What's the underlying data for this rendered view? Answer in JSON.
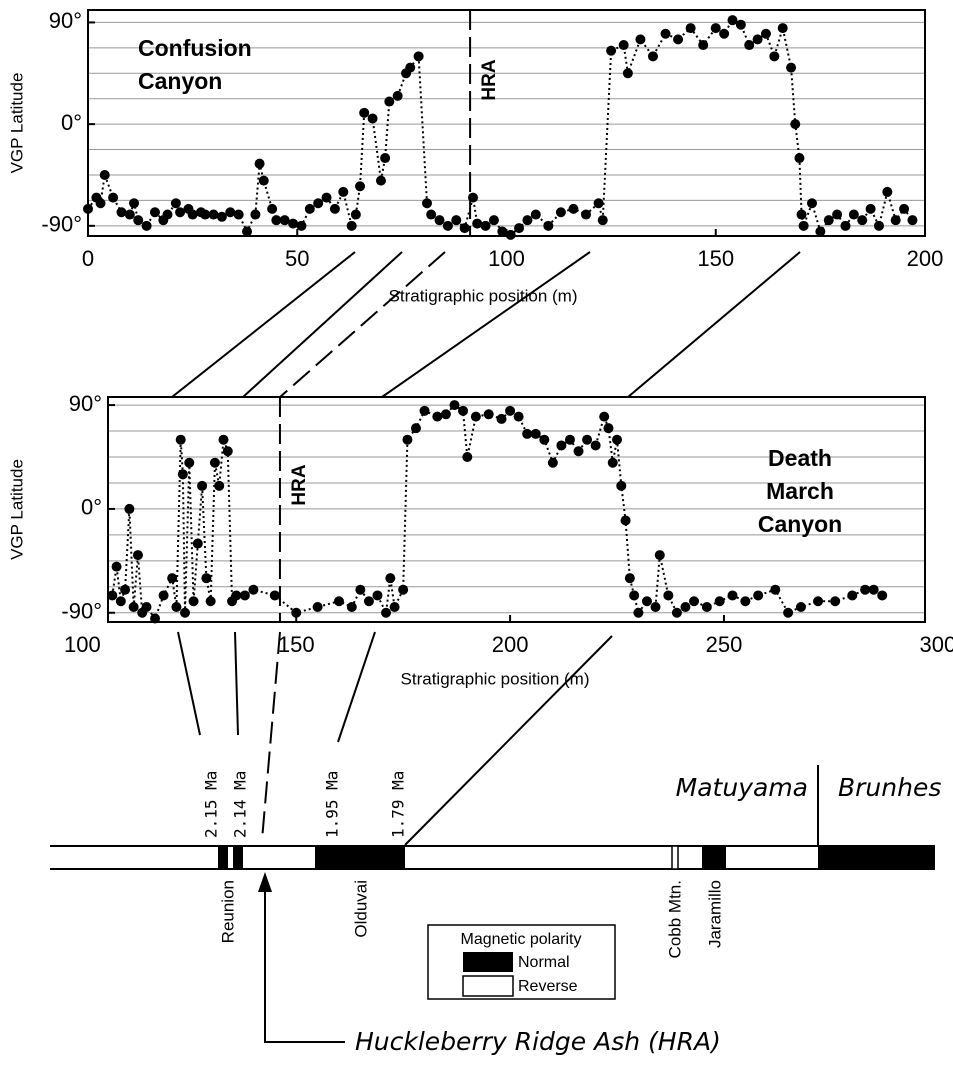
{
  "chart_data": [
    {
      "type": "scatter-line",
      "title_lines": [
        "Confusion",
        "Canyon"
      ],
      "y_label": "VGP Latitude",
      "x_label": "Stratigraphic position (m)",
      "xlim": [
        0,
        200
      ],
      "xticks": [
        0,
        50,
        100,
        150,
        200
      ],
      "ylim": [
        -99,
        101
      ],
      "yticks": [
        {
          "value": -90,
          "label": "-90°"
        },
        {
          "value": 0,
          "label": "0°"
        },
        {
          "value": 90,
          "label": "90°"
        }
      ],
      "ygrid": [
        -90,
        -67.5,
        -45,
        -22.5,
        0,
        22.5,
        45,
        67.5,
        90
      ],
      "marker": {
        "label": "HRA",
        "x": 91.3
      },
      "color": "#000000",
      "x": [
        0,
        2,
        3,
        4,
        6,
        8,
        10,
        11,
        12,
        14,
        16,
        18,
        19,
        21,
        22,
        24,
        25,
        27,
        28,
        30,
        32,
        34,
        36,
        38,
        40,
        41,
        42,
        44,
        45,
        47,
        49,
        51,
        53,
        55,
        57,
        59,
        61,
        63,
        64,
        65,
        66,
        68,
        70,
        71,
        72,
        74,
        76,
        77,
        79,
        81,
        82,
        84,
        86,
        88,
        90,
        92,
        93,
        95,
        97,
        99,
        101,
        103,
        105,
        107,
        110,
        113,
        116,
        119,
        122,
        123,
        125,
        128,
        129,
        132,
        135,
        138,
        141,
        144,
        147,
        150,
        152,
        154,
        156,
        158,
        160,
        162,
        164,
        166,
        168,
        169,
        170,
        170.5,
        171,
        173,
        175,
        177,
        179,
        181,
        183,
        185,
        187,
        189,
        191,
        193,
        195,
        197
      ],
      "values": [
        -75,
        -65,
        -70,
        -45,
        -65,
        -78,
        -80,
        -70,
        -85,
        -90,
        -78,
        -85,
        -80,
        -70,
        -78,
        -75,
        -80,
        -78,
        -80,
        -80,
        -82,
        -78,
        -80,
        -95,
        -80,
        -35,
        -50,
        -75,
        -85,
        -85,
        -88,
        -90,
        -75,
        -70,
        -65,
        -75,
        -60,
        -90,
        -80,
        -55,
        10,
        5,
        -50,
        -30,
        20,
        25,
        45,
        50,
        60,
        -70,
        -80,
        -85,
        -90,
        -85,
        -92,
        -65,
        -88,
        -90,
        -85,
        -95,
        -98,
        -92,
        -85,
        -80,
        -90,
        -78,
        -75,
        -80,
        -70,
        -85,
        65,
        70,
        45,
        75,
        60,
        80,
        75,
        85,
        70,
        85,
        80,
        92,
        88,
        70,
        75,
        80,
        60,
        85,
        50,
        0,
        -30,
        -80,
        -90,
        -70,
        -95,
        -85,
        -80,
        -90,
        -80,
        -85,
        -75,
        -90,
        -60,
        -85,
        -75,
        -85
      ]
    },
    {
      "type": "scatter-line",
      "title_lines": [
        "Death",
        "March",
        "Canyon"
      ],
      "y_label": "VGP Latitude",
      "x_label": "Stratigraphic position (m)",
      "xlim": [
        106,
        297
      ],
      "xticks": [
        100,
        150,
        200,
        250,
        300
      ],
      "ylim": [
        -98,
        97
      ],
      "yticks": [
        {
          "value": -90,
          "label": "-90°"
        },
        {
          "value": 0,
          "label": "0°"
        },
        {
          "value": 90,
          "label": "90°"
        }
      ],
      "ygrid": [
        -90,
        -67.5,
        -45,
        -22.5,
        0,
        22.5,
        45,
        67.5,
        90
      ],
      "marker": {
        "label": "HRA",
        "x": 146.2
      },
      "color": "#000000",
      "x": [
        107,
        108,
        109,
        110,
        111,
        112,
        113,
        114,
        115,
        117,
        119,
        121,
        122,
        123,
        123.5,
        124,
        125,
        126,
        127,
        128,
        129,
        130,
        131,
        132,
        133,
        134,
        135,
        136,
        138,
        140,
        145,
        150,
        155,
        160,
        163,
        165,
        167,
        169,
        171,
        172,
        173,
        175,
        176,
        178,
        180,
        183,
        185,
        187,
        189,
        190,
        192,
        195,
        198,
        200,
        202,
        204,
        206,
        208,
        210,
        212,
        214,
        216,
        218,
        220,
        222,
        223,
        224,
        225,
        226,
        227,
        228,
        229,
        230,
        232,
        234,
        235,
        237,
        239,
        241,
        243,
        246,
        249,
        252,
        255,
        258,
        262,
        265,
        268,
        272,
        276,
        280,
        283,
        285,
        287
      ],
      "values": [
        -75,
        -50,
        -80,
        -70,
        0,
        -85,
        -40,
        -90,
        -85,
        -95,
        -75,
        -60,
        -85,
        60,
        30,
        -90,
        40,
        -80,
        -30,
        20,
        -60,
        -80,
        40,
        20,
        60,
        50,
        -80,
        -75,
        -75,
        -70,
        -75,
        -90,
        -85,
        -80,
        -85,
        -70,
        -80,
        -75,
        -90,
        -60,
        -85,
        -70,
        60,
        70,
        85,
        80,
        82,
        90,
        85,
        45,
        80,
        82,
        78,
        85,
        80,
        65,
        65,
        60,
        40,
        55,
        60,
        50,
        60,
        55,
        80,
        70,
        40,
        60,
        20,
        -10,
        -60,
        -75,
        -90,
        -80,
        -85,
        -40,
        -75,
        -90,
        -85,
        -80,
        -85,
        -80,
        -75,
        -80,
        -75,
        -70,
        -90,
        -85,
        -80,
        -80,
        -75,
        -70,
        -70,
        -75
      ]
    }
  ],
  "timescale": {
    "ages": [
      "2.15 Ma",
      "2.14 Ma",
      "1.95 Ma",
      "1.79 Ma"
    ],
    "epochs": [
      "Matuyama",
      "Brunhes"
    ],
    "chrons": [
      "Reunion",
      "Olduvai",
      "Cobb Mtn.",
      "Jaramillo"
    ],
    "legend": {
      "title": "Magnetic polarity",
      "items": [
        "Normal",
        "Reverse"
      ]
    },
    "ash": "Huckleberry Ridge Ash (HRA)"
  }
}
